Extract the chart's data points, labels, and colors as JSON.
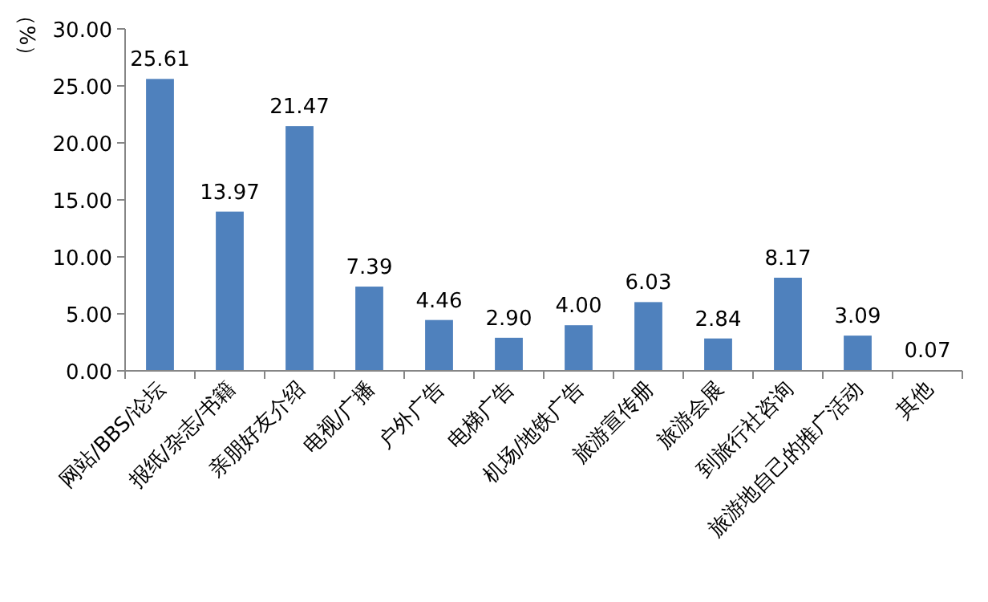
{
  "chart_data": {
    "type": "bar",
    "ylabel": "（%）",
    "categories": [
      "网站/BBS/论坛",
      "报纸/杂志/书籍",
      "亲朋好友介绍",
      "电视/广播",
      "户外广告",
      "电梯广告",
      "机场/地铁广告",
      "旅游宣传册",
      "旅游会展",
      "到旅行社咨询",
      "旅游地自己的推广活动",
      "其他"
    ],
    "values": [
      25.61,
      13.97,
      21.47,
      7.39,
      4.46,
      2.9,
      4.0,
      6.03,
      2.84,
      8.17,
      3.09,
      0.07
    ],
    "value_labels": [
      "25.61",
      "13.97",
      "21.47",
      "7.39",
      "4.46",
      "2.90",
      "4.00",
      "6.03",
      "2.84",
      "8.17",
      "3.09",
      "0.07"
    ],
    "color": "#4f81bd",
    "ylim": [
      0,
      30
    ],
    "yticks": [
      {
        "value": 0,
        "label": "0.00"
      },
      {
        "value": 5,
        "label": "5.00"
      },
      {
        "value": 10,
        "label": "10.00"
      },
      {
        "value": 15,
        "label": "15.00"
      },
      {
        "value": 20,
        "label": "20.00"
      },
      {
        "value": 25,
        "label": "25.00"
      },
      {
        "value": 30,
        "label": "30.00"
      }
    ],
    "grid": false
  }
}
